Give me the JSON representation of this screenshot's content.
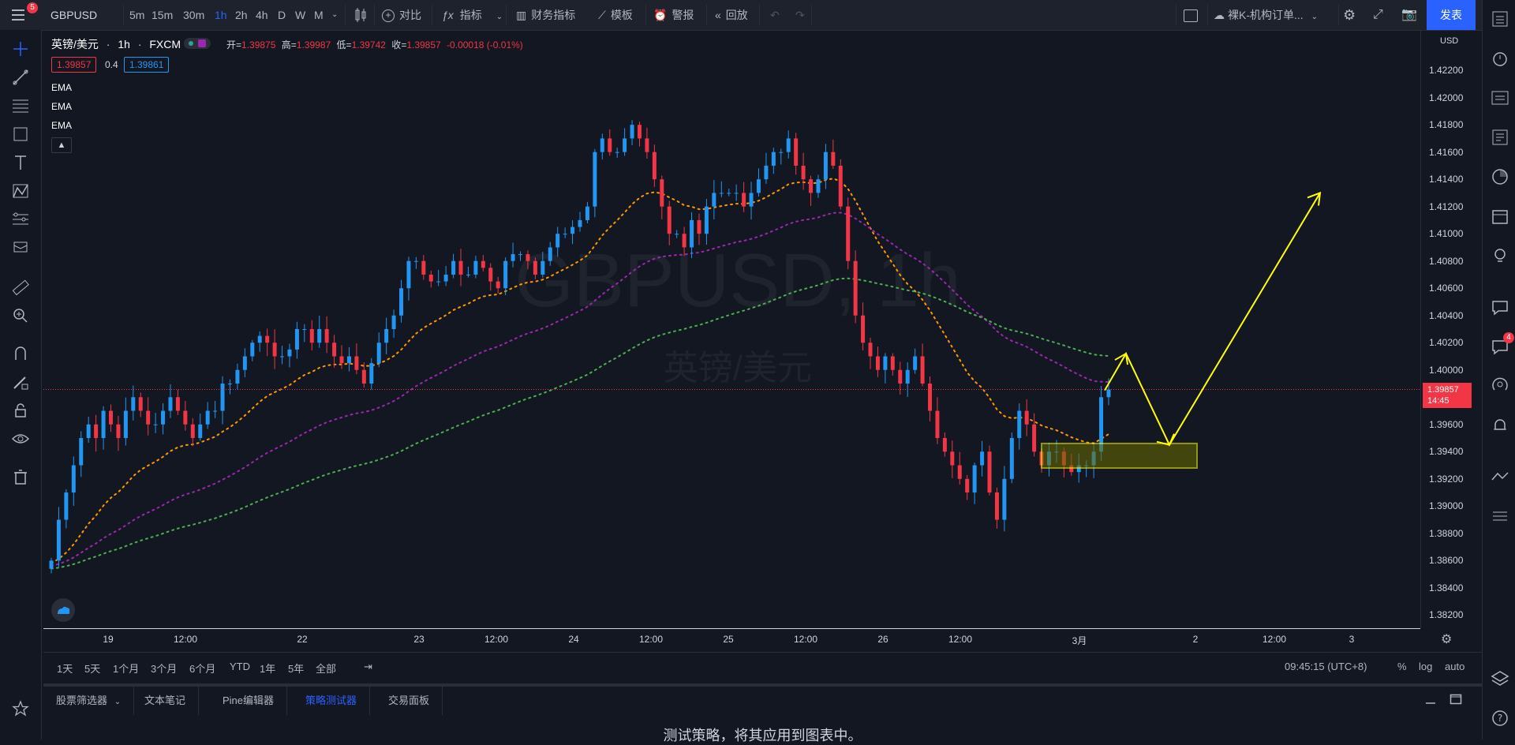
{
  "topbar": {
    "symbol": "GBPUSD",
    "menu_badge": "5",
    "intervals": [
      "5m",
      "15m",
      "30m",
      "1h",
      "2h",
      "4h",
      "D",
      "W",
      "M"
    ],
    "active_interval": "1h",
    "compare_label": "对比",
    "indicators_label": "指标",
    "financials_label": "财务指标",
    "templates_label": "模板",
    "alert_label": "警报",
    "replay_label": "回放",
    "layout_name": "裸K-机构订单...",
    "publish_label": "发表"
  },
  "legend": {
    "name": "英镑/美元",
    "interval": "1h",
    "exchange": "FXCM",
    "open_label": "开",
    "open": "1.39875",
    "high_label": "高",
    "high": "1.39987",
    "low_label": "低",
    "low": "1.39742",
    "close_label": "收",
    "close": "1.39857",
    "change": "-0.00018 (-0.01%)",
    "bid": "1.39857",
    "spread": "0.4",
    "ask": "1.39861",
    "indicators": [
      "EMA",
      "EMA",
      "EMA"
    ]
  },
  "watermark": {
    "symbol": "GBPUSD, 1h",
    "name": "英镑/美元"
  },
  "price_axis": {
    "currency": "USD",
    "labels": [
      "1.42200",
      "1.42000",
      "1.41800",
      "1.41600",
      "1.41400",
      "1.41200",
      "1.41000",
      "1.40800",
      "1.40600",
      "1.40400",
      "1.40200",
      "1.40000",
      "1.39600",
      "1.39400",
      "1.39200",
      "1.39000",
      "1.38800",
      "1.38600",
      "1.38400",
      "1.38200"
    ],
    "current_price": "1.39857",
    "countdown": "14:45"
  },
  "time_axis": [
    "19",
    "12:00",
    "22",
    "23",
    "12:00",
    "24",
    "12:00",
    "25",
    "12:00",
    "26",
    "12:00",
    "3月",
    "2",
    "12:00",
    "3"
  ],
  "range_bar": {
    "ranges": [
      "1天",
      "5天",
      "1个月",
      "3个月",
      "6个月",
      "YTD",
      "1年",
      "5年",
      "全部"
    ],
    "clock": "09:45:15 (UTC+8)",
    "percent": "%",
    "log": "log",
    "auto": "auto"
  },
  "bottom_tabs": [
    "股票筛选器",
    "文本笔记",
    "Pine编辑器",
    "策略测试器",
    "交易面板"
  ],
  "active_bottom_tab": "策略测试器",
  "bottom_message": "测试策略，将其应用到图表中。",
  "right_badge": "4",
  "colors": {
    "up": "#2196f3",
    "down": "#f23645",
    "ema1": "#ff9800",
    "ema2": "#9c27b0",
    "ema3": "#4caf50",
    "annotation": "#ffff00",
    "accent": "#2962ff"
  },
  "chart_data": {
    "type": "candlestick",
    "symbol": "GBPUSD",
    "interval": "1h",
    "ylim": [
      1.3815,
      1.4245
    ],
    "close_series": [
      1.386,
      1.389,
      1.391,
      1.393,
      1.395,
      1.396,
      1.395,
      1.397,
      1.396,
      1.395,
      1.397,
      1.398,
      1.397,
      1.396,
      1.396,
      1.397,
      1.398,
      1.397,
      1.396,
      1.395,
      1.396,
      1.397,
      1.397,
      1.399,
      1.399,
      1.4,
      1.401,
      1.402,
      1.4025,
      1.402,
      1.401,
      1.401,
      1.4015,
      1.403,
      1.403,
      1.402,
      1.403,
      1.402,
      1.401,
      1.4005,
      1.401,
      1.4,
      1.399,
      1.4005,
      1.402,
      1.403,
      1.404,
      1.406,
      1.408,
      1.408,
      1.407,
      1.4065,
      1.4065,
      1.407,
      1.408,
      1.407,
      1.407,
      1.408,
      1.4075,
      1.4065,
      1.406,
      1.408,
      1.4085,
      1.4085,
      1.408,
      1.407,
      1.408,
      1.409,
      1.41,
      1.41,
      1.4105,
      1.411,
      1.412,
      1.416,
      1.417,
      1.416,
      1.416,
      1.417,
      1.418,
      1.417,
      1.416,
      1.414,
      1.412,
      1.41,
      1.41,
      1.409,
      1.411,
      1.41,
      1.412,
      1.413,
      1.413,
      1.413,
      1.413,
      1.412,
      1.413,
      1.414,
      1.415,
      1.416,
      1.416,
      1.417,
      1.415,
      1.414,
      1.413,
      1.414,
      1.416,
      1.415,
      1.412,
      1.408,
      1.404,
      1.402,
      1.401,
      1.4,
      1.401,
      1.4,
      1.399,
      1.4,
      1.401,
      1.399,
      1.397,
      1.395,
      1.394,
      1.393,
      1.392,
      1.391,
      1.393,
      1.394,
      1.391,
      1.389,
      1.392,
      1.395,
      1.397,
      1.396,
      1.394,
      1.393,
      1.394,
      1.394,
      1.393,
      1.3925,
      1.393,
      1.393,
      1.394,
      1.398,
      1.39857
    ],
    "ema_series": [
      {
        "color": "#ff9800"
      },
      {
        "color": "#9c27b0"
      },
      {
        "color": "#4caf50"
      }
    ],
    "annotation_zone": {
      "price_low": 1.3928,
      "price_high": 1.3946
    },
    "annotation_arrow_prices": [
      1.3985,
      1.4012,
      1.3945,
      1.413
    ]
  }
}
